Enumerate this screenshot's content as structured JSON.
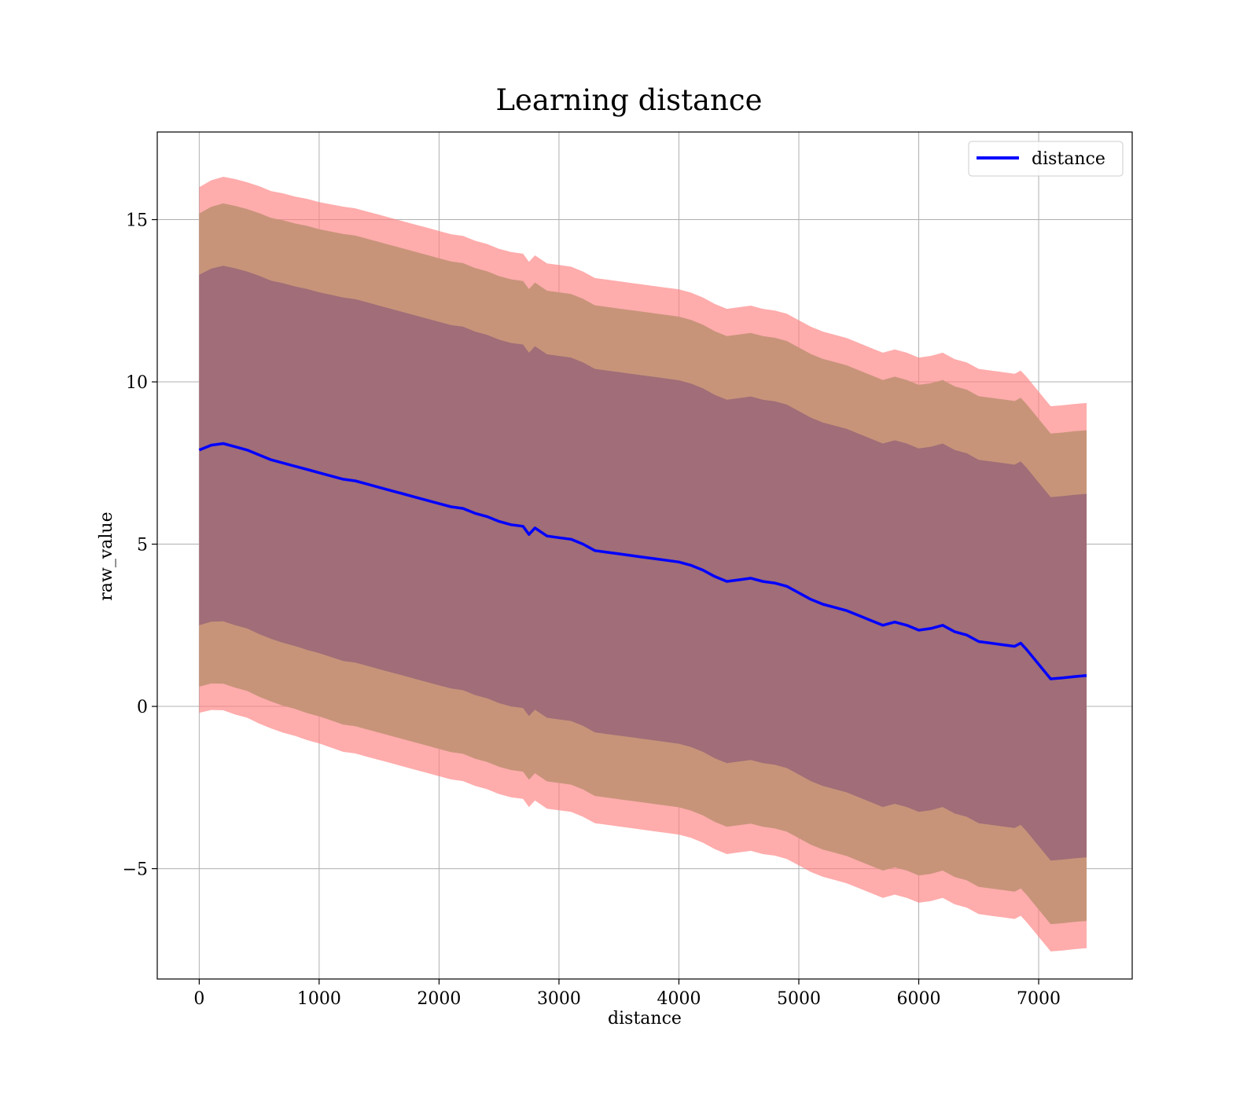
{
  "chart_data": {
    "type": "line",
    "title": "Learning distance",
    "xlabel": "distance",
    "ylabel": "raw_value",
    "xlim": [
      -350,
      7780
    ],
    "ylim": [
      -8.4,
      17.7
    ],
    "xticks": [
      0,
      1000,
      2000,
      3000,
      4000,
      5000,
      6000,
      7000
    ],
    "xtick_labels": [
      "0",
      "1000",
      "2000",
      "3000",
      "4000",
      "5000",
      "6000",
      "7000"
    ],
    "yticks": [
      -5,
      0,
      5,
      10,
      15
    ],
    "ytick_labels": [
      "−5",
      "0",
      "5",
      "10",
      "15"
    ],
    "grid": true,
    "legend": {
      "position": "top-right",
      "entries": [
        "distance"
      ]
    },
    "colors": {
      "line": "#0000ff",
      "band_3std": "#ff8080",
      "band_2std": "#c7947a",
      "band_1std": "#a06d78",
      "grid": "#b0b0b0"
    },
    "series": [
      {
        "name": "distance",
        "x": [
          0,
          100,
          200,
          300,
          400,
          500,
          600,
          700,
          800,
          900,
          1000,
          1100,
          1200,
          1300,
          1400,
          1500,
          1600,
          1700,
          1800,
          1900,
          2000,
          2100,
          2200,
          2300,
          2400,
          2500,
          2600,
          2700,
          2750,
          2800,
          2900,
          3000,
          3100,
          3200,
          3300,
          3400,
          3500,
          3600,
          3700,
          3800,
          3900,
          4000,
          4100,
          4200,
          4300,
          4400,
          4500,
          4600,
          4700,
          4800,
          4900,
          5000,
          5100,
          5200,
          5300,
          5400,
          5500,
          5600,
          5700,
          5800,
          5900,
          6000,
          6100,
          6200,
          6300,
          6400,
          6500,
          6600,
          6700,
          6800,
          6850,
          6900,
          7000,
          7100,
          7200,
          7300,
          7400
        ],
        "values": [
          7.9,
          8.05,
          8.1,
          8.0,
          7.9,
          7.75,
          7.6,
          7.5,
          7.4,
          7.3,
          7.2,
          7.1,
          7.0,
          6.95,
          6.85,
          6.75,
          6.65,
          6.55,
          6.45,
          6.35,
          6.25,
          6.15,
          6.1,
          5.95,
          5.85,
          5.7,
          5.6,
          5.55,
          5.3,
          5.5,
          5.25,
          5.2,
          5.15,
          5.0,
          4.8,
          4.75,
          4.7,
          4.65,
          4.6,
          4.55,
          4.5,
          4.45,
          4.35,
          4.2,
          4.0,
          3.85,
          3.9,
          3.95,
          3.85,
          3.8,
          3.7,
          3.5,
          3.3,
          3.15,
          3.05,
          2.95,
          2.8,
          2.65,
          2.5,
          2.6,
          2.5,
          2.35,
          2.4,
          2.5,
          2.3,
          2.2,
          2.0,
          1.95,
          1.9,
          1.85,
          1.95,
          1.75,
          1.3,
          0.85,
          0.88,
          0.92,
          0.95
        ],
        "std": [
          2.7,
          2.72,
          2.74,
          2.75,
          2.75,
          2.76,
          2.76,
          2.77,
          2.77,
          2.78,
          2.78,
          2.79,
          2.8,
          2.8,
          2.8,
          2.8,
          2.8,
          2.8,
          2.8,
          2.8,
          2.8,
          2.8,
          2.8,
          2.8,
          2.8,
          2.8,
          2.8,
          2.8,
          2.8,
          2.8,
          2.8,
          2.8,
          2.8,
          2.8,
          2.8,
          2.8,
          2.8,
          2.8,
          2.8,
          2.8,
          2.8,
          2.8,
          2.8,
          2.8,
          2.8,
          2.8,
          2.8,
          2.8,
          2.8,
          2.8,
          2.8,
          2.8,
          2.8,
          2.8,
          2.8,
          2.8,
          2.8,
          2.8,
          2.8,
          2.8,
          2.8,
          2.8,
          2.8,
          2.8,
          2.8,
          2.8,
          2.8,
          2.8,
          2.8,
          2.8,
          2.8,
          2.8,
          2.8,
          2.8,
          2.8,
          2.8,
          2.8
        ]
      }
    ]
  }
}
